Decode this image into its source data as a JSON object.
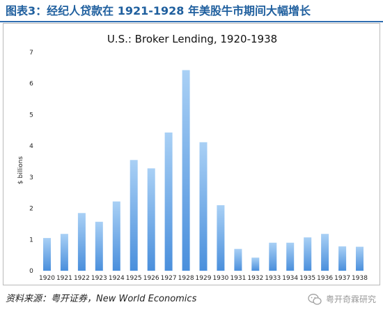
{
  "figure": {
    "title": "图表3：经纪人贷款在 1921-1928 年美股牛市期间大幅增长",
    "source": "资料来源：粤开证券，New World Economics",
    "watermark": "粤开奇霖研究",
    "accent_color": "#1f5f9e"
  },
  "chart_data": {
    "type": "bar",
    "title": "U.S.: Broker Lending, 1920-1938",
    "xlabel": "",
    "ylabel": "$ billions",
    "categories": [
      "1920",
      "1921",
      "1922",
      "1923",
      "1924",
      "1925",
      "1926",
      "1927",
      "1928",
      "1929",
      "1930",
      "1931",
      "1932",
      "1933",
      "1934",
      "1935",
      "1936",
      "1937",
      "1938"
    ],
    "values": [
      1.05,
      1.18,
      1.85,
      1.57,
      2.22,
      3.55,
      3.28,
      4.43,
      6.43,
      4.12,
      2.1,
      0.7,
      0.42,
      0.9,
      0.9,
      1.07,
      1.18,
      0.78,
      0.77
    ],
    "ylim": [
      0,
      7
    ],
    "yticks": [
      "0",
      "1",
      "2",
      "3",
      "4",
      "5",
      "6",
      "7"
    ],
    "grid": false,
    "legend": "none",
    "bar_color_top": "#a9d0f5",
    "bar_color_bottom": "#4a8fdc"
  }
}
